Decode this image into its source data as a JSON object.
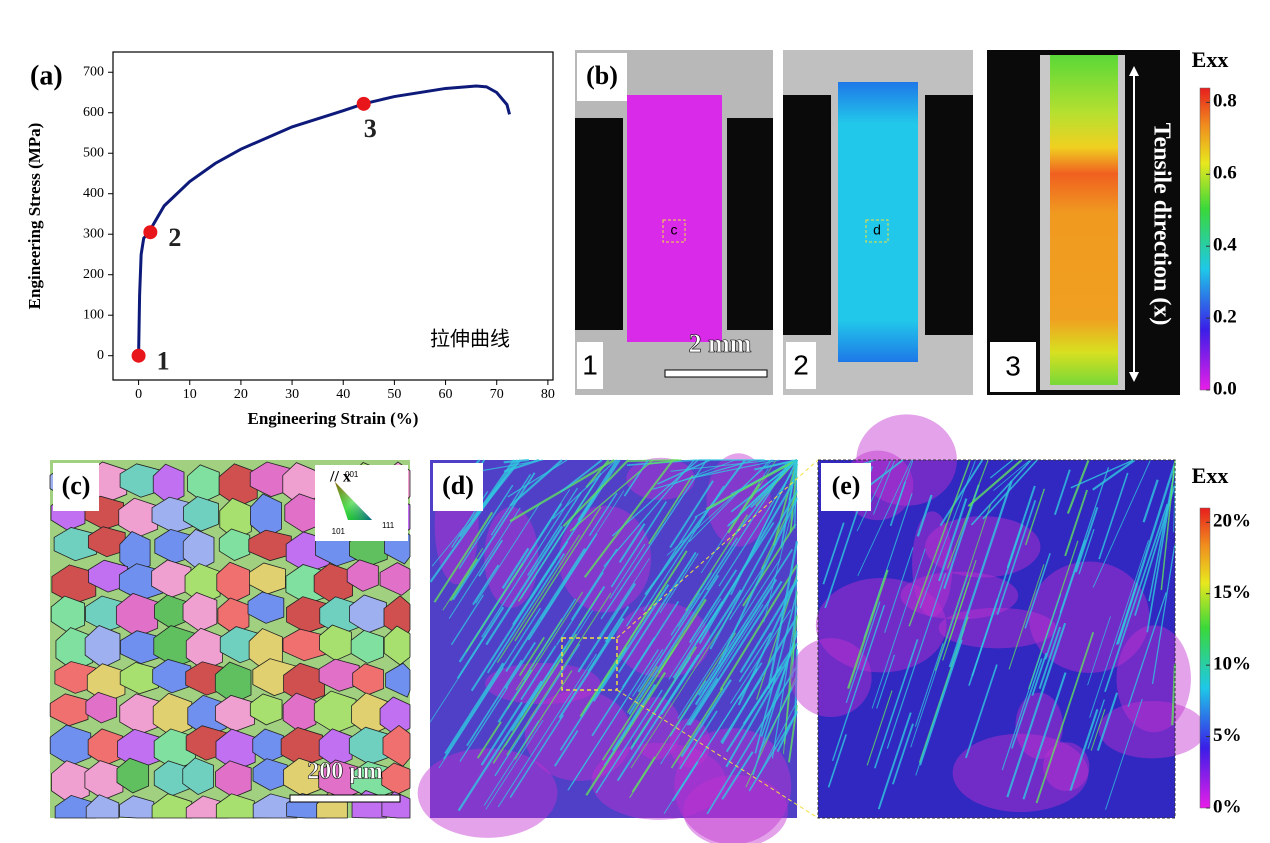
{
  "chart_data": {
    "type": "line",
    "panel_label": "(a)",
    "x_label": "Engineering Strain (%)",
    "y_label": "Engineering Stress (MPa)",
    "annotation": "拉伸曲线",
    "xlim": [
      -5,
      81
    ],
    "ylim": [
      -60,
      750
    ],
    "xticks": [
      0,
      10,
      20,
      30,
      40,
      50,
      60,
      70,
      80
    ],
    "yticks": [
      0,
      100,
      200,
      300,
      400,
      500,
      600,
      700
    ],
    "x": [
      0,
      0.2,
      0.5,
      1,
      2,
      5,
      10,
      15,
      20,
      30,
      40,
      44,
      50,
      60,
      66,
      68,
      70,
      72,
      72.5
    ],
    "series": [
      {
        "color": "#0d1a7a",
        "values": [
          0,
          150,
          250,
          290,
          305,
          370,
          430,
          475,
          510,
          565,
          605,
          622,
          640,
          660,
          666,
          664,
          650,
          620,
          596
        ]
      }
    ],
    "markers": {
      "color": "#e8151b",
      "x": [
        0,
        2.3,
        44
      ],
      "values": [
        0,
        305,
        622
      ],
      "labels": [
        "1",
        "2",
        "3"
      ]
    }
  },
  "panel_b": {
    "label": "(b)",
    "frames": [
      "1",
      "2",
      "3"
    ],
    "boxes": [
      "c",
      "d"
    ],
    "scale_bar": "2 mm",
    "direction": "Tensile direction (x)",
    "colorbar": {
      "title": "Exx",
      "lim": [
        0,
        0.84
      ],
      "ticks": [
        {
          "value": 0,
          "label": "0.0"
        },
        0.2,
        0.4,
        0.6,
        0.8
      ]
    }
  },
  "panel_c": {
    "label": "(c)",
    "legend_title": "// x",
    "poles": [
      "001",
      "101",
      "111"
    ],
    "scale_bar": "200 μm"
  },
  "panel_d": {
    "label": "(d)"
  },
  "panel_e": {
    "label": "(e)",
    "colorbar": {
      "title": "Exx",
      "lim": [
        0,
        21
      ],
      "ticks": [
        {
          "value": 0,
          "label": "0%"
        },
        {
          "value": 5,
          "label": "5%"
        },
        {
          "value": 10,
          "label": "10%"
        },
        {
          "value": 15,
          "label": "15%"
        },
        {
          "value": 20,
          "label": "20%"
        }
      ]
    }
  }
}
